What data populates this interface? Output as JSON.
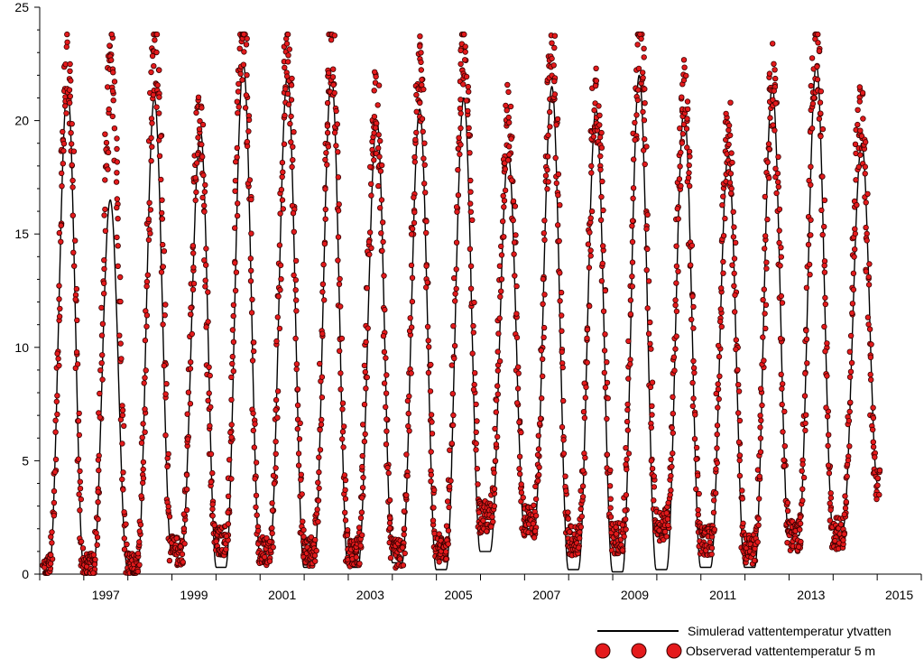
{
  "chart_data": {
    "type": "line",
    "title": "",
    "xlabel": "",
    "ylabel": "",
    "xlim": [
      1996.0,
      2016.0
    ],
    "ylim": [
      0,
      25
    ],
    "y_ticks": [
      0,
      5,
      10,
      15,
      20,
      25
    ],
    "x_ticks": [
      1997,
      1999,
      2001,
      2003,
      2005,
      2007,
      2009,
      2011,
      2013,
      2015
    ],
    "grid": false,
    "legend_position": "bottom-right",
    "series": [
      {
        "name": "Simulerad vattentemperatur ytvatten",
        "kind": "line",
        "color": "#000000",
        "yearly_cycle": {
          "years": [
            1996,
            1997,
            1998,
            1999,
            2000,
            2001,
            2002,
            2003,
            2004,
            2005,
            2006,
            2007,
            2008,
            2009,
            2010,
            2011,
            2012,
            2013,
            2014
          ],
          "winter_minimum": [
            0.3,
            0.3,
            0.3,
            1.0,
            0.3,
            0.9,
            0.3,
            0.3,
            0.5,
            0.2,
            1.0,
            2.0,
            0.2,
            0.1,
            0.2,
            0.3,
            0.3,
            1.7,
            2.0
          ],
          "summer_peak": [
            21.5,
            16.5,
            21.0,
            19.5,
            22.5,
            22.0,
            22.0,
            20.0,
            20.5,
            21.0,
            18.5,
            21.5,
            20.5,
            22.0,
            20.5,
            18.5,
            21.5,
            22.5,
            19.0
          ],
          "peak_date": [
            1996.63,
            1997.6,
            1998.6,
            1999.65,
            2000.62,
            2001.62,
            2002.62,
            2003.65,
            2004.62,
            2005.62,
            2006.63,
            2007.62,
            2008.62,
            2009.6,
            2010.62,
            2011.62,
            2012.62,
            2013.62,
            2014.65
          ]
        }
      },
      {
        "name": "Observerad vattentemperatur 5 m",
        "kind": "scatter",
        "color": "#e41a1c",
        "edge_color": "#3a0000",
        "yearly_cycle": {
          "years": [
            1996,
            1997,
            1998,
            1999,
            2000,
            2001,
            2002,
            2003,
            2004,
            2005,
            2006,
            2007,
            2008,
            2009,
            2010,
            2011,
            2012,
            2013,
            2014
          ],
          "winter_minimum": [
            0.2,
            0.3,
            0.3,
            1.0,
            1.5,
            1.0,
            1.0,
            1.0,
            0.9,
            1.1,
            2.5,
            2.3,
            1.5,
            1.6,
            2.2,
            1.5,
            1.1,
            1.7,
            1.8
          ],
          "summer_peak": [
            22.5,
            22.5,
            23.3,
            19.7,
            23.7,
            22.6,
            22.8,
            20.4,
            22.0,
            23.4,
            19.8,
            22.4,
            21.2,
            23.4,
            21.0,
            19.3,
            21.6,
            23.0,
            20.0
          ],
          "peak_date": [
            1996.63,
            1997.63,
            1998.63,
            1999.62,
            2000.62,
            2001.63,
            2002.62,
            2003.63,
            2004.62,
            2005.62,
            2006.63,
            2007.63,
            2008.63,
            2009.62,
            2010.62,
            2011.62,
            2012.63,
            2013.63,
            2014.62
          ],
          "series_end": [
            2015.05,
            5.0
          ]
        }
      }
    ]
  }
}
